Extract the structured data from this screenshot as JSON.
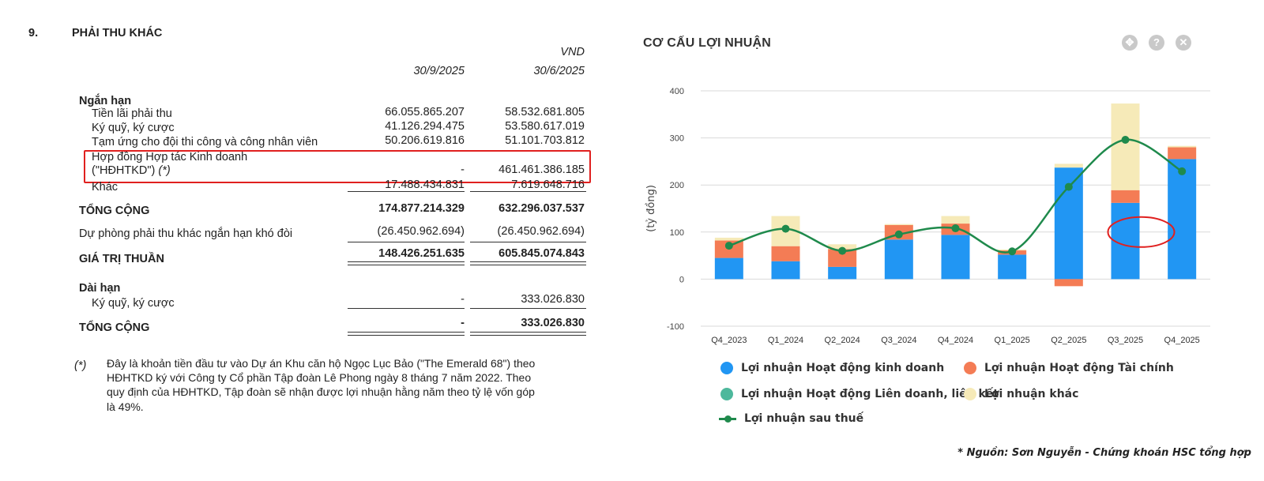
{
  "document": {
    "section_number": "9.",
    "section_title": "PHẢI THU KHÁC",
    "currency": "VND",
    "col_headers": [
      "30/9/2025",
      "30/6/2025"
    ],
    "short_term_label": "Ngắn hạn",
    "short_term_rows": [
      {
        "label": "Tiền lãi phải thu",
        "v1": "66.055.865.207",
        "v2": "58.532.681.805"
      },
      {
        "label": "Ký quỹ, ký cược",
        "v1": "41.126.294.475",
        "v2": "53.580.617.019"
      },
      {
        "label": "Tạm ứng cho đội thi công và công nhân viên",
        "v1": "50.206.619.816",
        "v2": "51.101.703.812"
      }
    ],
    "bcc_row": {
      "label_line1": "Hợp đồng Hợp tác Kinh doanh",
      "label_line2": "(\"HĐHTKD\")",
      "note_mark": "(*)",
      "v1": "-",
      "v2": "461.461.386.185"
    },
    "other_row": {
      "label": "Khác",
      "v1": "17.488.434.831",
      "v2": "7.619.648.716"
    },
    "total_row": {
      "label": "TỔNG CỘNG",
      "v1": "174.877.214.329",
      "v2": "632.296.037.537"
    },
    "provision_row": {
      "label": "Dự phòng phải thu khác ngắn hạn khó đòi",
      "v1": "(26.450.962.694)",
      "v2": "(26.450.962.694)"
    },
    "net_row": {
      "label": "GIÁ TRỊ THUẦN",
      "v1": "148.426.251.635",
      "v2": "605.845.074.843"
    },
    "long_term_label": "Dài hạn",
    "long_term_row": {
      "label": "Ký quỹ, ký cược",
      "v1": "-",
      "v2": "333.026.830"
    },
    "long_total_row": {
      "label": "TỔNG CỘNG",
      "v1": "-",
      "v2": "333.026.830"
    },
    "footnote": {
      "mark": "(*)",
      "lines": [
        "Đây là khoản tiền đầu tư vào Dự án Khu căn hộ Ngọc Lục Bảo (\"The Emerald 68\") theo",
        "HĐHTKD ký với Công ty Cổ phần Tập đoàn Lê Phong ngày 8 tháng 7 năm 2022. Theo",
        "quy định của HĐHTKD, Tập đoàn sẽ nhận được lợi nhuận hằng năm theo tỷ lệ vốn góp",
        "là 49%."
      ]
    }
  },
  "chart_header": {
    "title": "CƠ CẤU LỢI NHUẬN",
    "icons": [
      "move-icon",
      "help-icon",
      "close-icon"
    ]
  },
  "chart_data": {
    "type": "bar",
    "stacked": true,
    "ylabel": "(tỷ đồng)",
    "ylim": [
      -100,
      400
    ],
    "yticks": [
      -100,
      0,
      100,
      200,
      300,
      400
    ],
    "grid": true,
    "legend_position": "bottom",
    "categories": [
      "Q4_2023",
      "Q1_2024",
      "Q2_2024",
      "Q3_2024",
      "Q4_2024",
      "Q1_2025",
      "Q2_2025",
      "Q3_2025",
      "Q4_2025"
    ],
    "series": [
      {
        "name": "Lợi nhuận Hoạt động kinh doanh",
        "kind": "bar",
        "color": "#2196f3",
        "values": [
          45,
          38,
          26,
          84,
          94,
          52,
          237,
          162,
          255
        ]
      },
      {
        "name": "Lợi nhuận Hoạt động Tài chính",
        "kind": "bar",
        "color": "#f47c55",
        "values": [
          37,
          32,
          38,
          31,
          24,
          9,
          -15,
          27,
          25
        ]
      },
      {
        "name": "Lợi nhuận Hoạt động Liên doanh, liên kết",
        "kind": "bar",
        "color": "#4db89c",
        "values": [
          0,
          0,
          0,
          0,
          0,
          0,
          0,
          0,
          0
        ]
      },
      {
        "name": "Lợi nhuận khác",
        "kind": "bar",
        "color": "#f6eab8",
        "values": [
          6,
          64,
          10,
          2,
          16,
          2,
          8,
          184,
          3
        ]
      },
      {
        "name": "Lợi nhuận sau thuế",
        "kind": "line",
        "color": "#1f8a4c",
        "values": [
          71,
          107,
          60,
          95,
          108,
          59,
          196,
          296,
          229
        ]
      }
    ],
    "annotation": {
      "type": "ellipse",
      "category": "Q3_2025",
      "y_center": 100,
      "color": "#e0201f"
    }
  },
  "source_note": "* Nguồn: Sơn Nguyễn - Chứng khoán HSC tổng hợp"
}
